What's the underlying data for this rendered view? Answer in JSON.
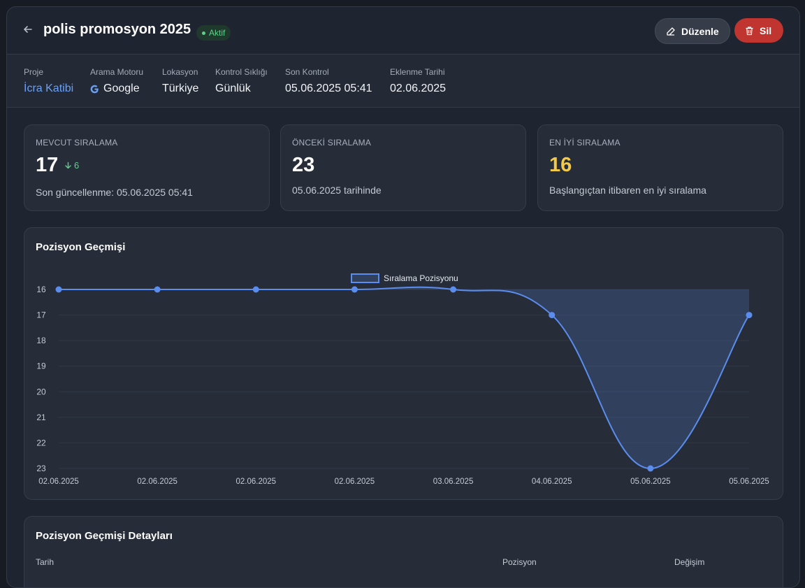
{
  "header": {
    "title": "polis promosyon 2025",
    "status": "Aktif",
    "edit_label": "Düzenle",
    "delete_label": "Sil"
  },
  "meta": {
    "project_label": "Proje",
    "project_value": "İcra Katibi",
    "engine_label": "Arama Motoru",
    "engine_value": "Google",
    "location_label": "Lokasyon",
    "location_value": "Türkiye",
    "frequency_label": "Kontrol Sıklığı",
    "frequency_value": "Günlük",
    "last_check_label": "Son Kontrol",
    "last_check_value": "05.06.2025 05:41",
    "added_label": "Eklenme Tarihi",
    "added_value": "02.06.2025"
  },
  "stats": {
    "current": {
      "label": "MEVCUT SIRALAMA",
      "value": "17",
      "delta": "6",
      "sub": "Son güncellenme: 05.06.2025 05:41"
    },
    "previous": {
      "label": "ÖNCEKİ SIRALAMA",
      "value": "23",
      "sub": "05.06.2025 tarihinde"
    },
    "best": {
      "label": "EN İYİ SIRALAMA",
      "value": "16",
      "sub": "Başlangıçtan itibaren en iyi sıralama"
    }
  },
  "chart_section_title": "Pozisyon Geçmişi",
  "details": {
    "title": "Pozisyon Geçmişi Detayları",
    "col_date": "Tarih",
    "col_position": "Pozisyon",
    "col_change": "Değişim"
  },
  "colors": {
    "accent": "#5b8def",
    "positive": "#5fd08a",
    "best": "#f3c94b",
    "danger": "#c0352f"
  },
  "chart_data": {
    "type": "line",
    "categories": [
      "02.06.2025",
      "02.06.2025",
      "02.06.2025",
      "02.06.2025",
      "03.06.2025",
      "04.06.2025",
      "05.06.2025",
      "05.06.2025"
    ],
    "series": [
      {
        "name": "Sıralama Pozisyonu",
        "values": [
          16,
          16,
          16,
          16,
          16,
          17,
          23,
          17
        ]
      }
    ],
    "y_ticks": [
      16,
      17,
      18,
      19,
      20,
      21,
      22,
      23
    ],
    "ylim": [
      16,
      23
    ],
    "y_reversed": true,
    "grid": true,
    "legend": "top-center",
    "fill": true
  }
}
